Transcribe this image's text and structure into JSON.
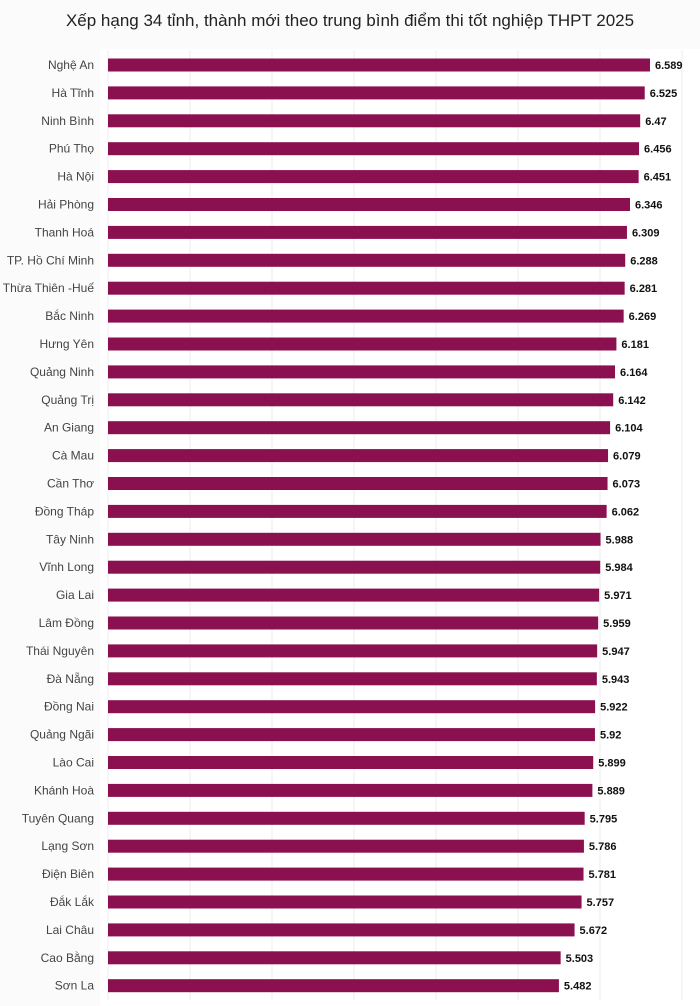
{
  "chart_data": {
    "type": "bar",
    "orientation": "horizontal",
    "title": "Xếp hạng 34 tỉnh, thành mới theo trung bình điểm thi tốt nghiệp THPT 2025",
    "xlabel": "",
    "ylabel": "",
    "xlim": [
      0,
      6.65
    ],
    "grid": true,
    "bar_color": "#8b1050",
    "categories": [
      "Nghệ An",
      "Hà Tĩnh",
      "Ninh Bình",
      "Phú Thọ",
      "Hà Nội",
      "Hải Phòng",
      "Thanh Hoá",
      "TP. Hồ Chí Minh",
      "Thừa Thiên -Huế",
      "Bắc Ninh",
      "Hưng Yên",
      "Quảng Ninh",
      "Quảng Trị",
      "An Giang",
      "Cà Mau",
      "Cần Thơ",
      "Đồng Tháp",
      "Tây Ninh",
      "Vĩnh Long",
      "Gia Lai",
      "Lâm Đồng",
      "Thái Nguyên",
      "Đà Nẵng",
      "Đồng Nai",
      "Quảng Ngãi",
      "Lào Cai",
      "Khánh Hoà",
      "Tuyên Quang",
      "Lạng Sơn",
      "Điện Biên",
      "Đắk Lắk",
      "Lai Châu",
      "Cao Bằng",
      "Sơn La"
    ],
    "values": [
      6.589,
      6.525,
      6.47,
      6.456,
      6.451,
      6.346,
      6.309,
      6.288,
      6.281,
      6.269,
      6.181,
      6.164,
      6.142,
      6.104,
      6.079,
      6.073,
      6.062,
      5.988,
      5.984,
      5.971,
      5.959,
      5.947,
      5.943,
      5.922,
      5.92,
      5.899,
      5.889,
      5.795,
      5.786,
      5.781,
      5.757,
      5.672,
      5.503,
      5.482
    ],
    "value_labels": [
      "6.589",
      "6.525",
      "6.47",
      "6.456",
      "6.451",
      "6.346",
      "6.309",
      "6.288",
      "6.281",
      "6.269",
      "6.181",
      "6.164",
      "6.142",
      "6.104",
      "6.079",
      "6.073",
      "6.062",
      "5.988",
      "5.984",
      "5.971",
      "5.959",
      "5.947",
      "5.943",
      "5.922",
      "5.92",
      "5.899",
      "5.889",
      "5.795",
      "5.786",
      "5.781",
      "5.757",
      "5.672",
      "5.503",
      "5.482"
    ]
  }
}
